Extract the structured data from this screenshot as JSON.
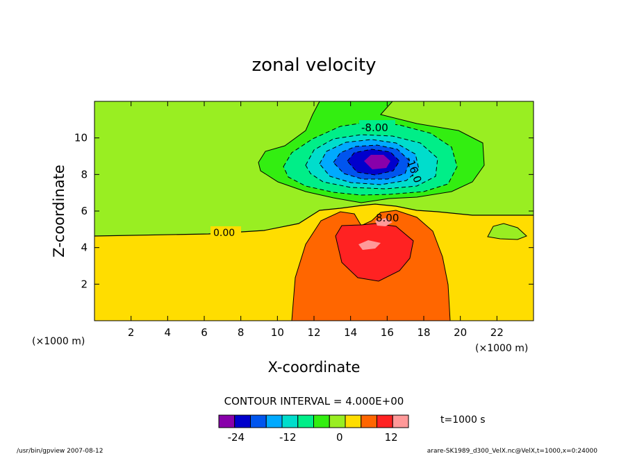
{
  "chart_data": {
    "type": "contour",
    "title": "zonal velocity",
    "xlabel": "X-coordinate",
    "ylabel": "Z-coordinate",
    "x_unit": "(×1000 m)",
    "y_unit": "(×1000 m)",
    "xlim": [
      0,
      24
    ],
    "ylim": [
      0,
      12
    ],
    "xticks": [
      "2",
      "4",
      "6",
      "8",
      "10",
      "12",
      "14",
      "16",
      "18",
      "20",
      "22"
    ],
    "yticks": [
      "2",
      "4",
      "6",
      "8",
      "10"
    ],
    "contour_labels": [
      "-8.00",
      "-16.0",
      "0.00",
      "8.00"
    ],
    "contour_interval_text": "CONTOUR INTERVAL = 4.000E+00",
    "colorbar": {
      "levels": [
        -28,
        -24,
        -20,
        -16,
        -12,
        -8,
        -4,
        0,
        4,
        8,
        12,
        16
      ],
      "colors": [
        "#8800aa",
        "#0000cc",
        "#0055ee",
        "#00aaff",
        "#00ddcc",
        "#00ee88",
        "#33ee11",
        "#99ee22",
        "#ffdd00",
        "#ff6600",
        "#ff2222",
        "#ff9999"
      ],
      "tick_labels": [
        "-24",
        "-12",
        "0",
        "12"
      ],
      "tick_values": [
        -24,
        -12,
        0,
        12
      ]
    },
    "grid": false
  },
  "time_label": "t=1000 s",
  "footer": {
    "left": "/usr/bin/gpview   2007-08-12",
    "right": "arare-SK1989_d300_VelX.nc@VelX,t=1000,x=0:24000"
  }
}
